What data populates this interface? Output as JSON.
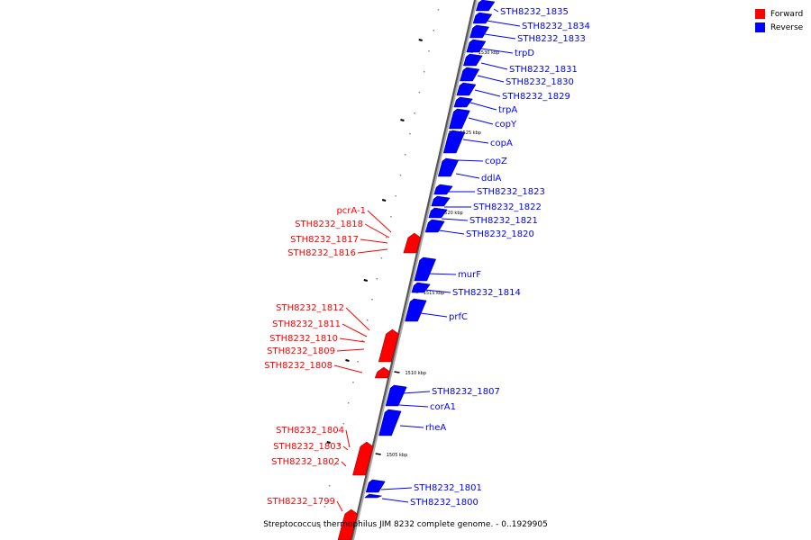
{
  "legend": {
    "forward_label": "Forward",
    "reverse_label": "Reverse",
    "forward_color": "#ff0000",
    "reverse_color": "#0000ff"
  },
  "caption": "Streptococcus thermophilus JIM 8232 complete genome. - 0..1929905",
  "scale_labels": [
    "1530 kbp",
    "1525 kbp",
    "1520 kbp",
    "1515 kbp",
    "1510 kbp",
    "1505 kbp"
  ],
  "reverse_genes": [
    "STH8232_1835",
    "STH8232_1834",
    "STH8232_1833",
    "trpD",
    "STH8232_1831",
    "STH8232_1830",
    "STH8232_1829",
    "trpA",
    "copY",
    "copA",
    "copZ",
    "ddlA",
    "STH8232_1823",
    "STH8232_1822",
    "STH8232_1821",
    "STH8232_1820",
    "murF",
    "STH8232_1814",
    "prfC",
    "STH8232_1807",
    "corA1",
    "rheA",
    "STH8232_1801",
    "STH8232_1800"
  ],
  "forward_genes": [
    "pcrA-1",
    "STH8232_1818",
    "STH8232_1817",
    "STH8232_1816",
    "STH8232_1812",
    "STH8232_1811",
    "STH8232_1810",
    "STH8232_1809",
    "STH8232_1808",
    "STH8232_1804",
    "STH8232_1803",
    "STH8232_1802",
    "STH8232_1799"
  ]
}
